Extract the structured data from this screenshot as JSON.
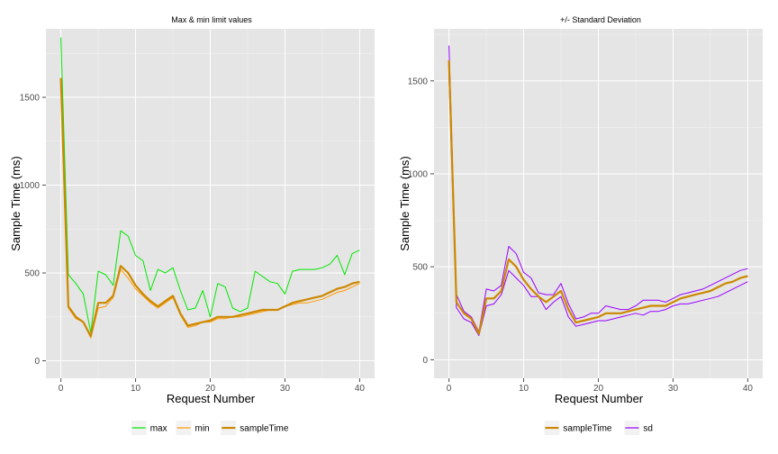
{
  "chart_data": [
    {
      "type": "line",
      "title": "Max & min limit values",
      "xlabel": "Request Number",
      "ylabel": "Sample Time (ms)",
      "xlim": [
        -2,
        42
      ],
      "ylim": [
        -100,
        1890
      ],
      "xticks": [
        0,
        10,
        20,
        30,
        40
      ],
      "yticks": [
        0,
        500,
        1000,
        1500
      ],
      "grid": true,
      "legend_position": "bottom",
      "x": [
        0,
        1,
        2,
        3,
        4,
        5,
        6,
        7,
        8,
        9,
        10,
        11,
        12,
        13,
        14,
        15,
        16,
        17,
        18,
        19,
        20,
        21,
        22,
        23,
        24,
        25,
        26,
        27,
        28,
        29,
        30,
        31,
        32,
        33,
        34,
        35,
        36,
        37,
        38,
        39,
        40
      ],
      "series": [
        {
          "name": "max",
          "color": "#00e600",
          "width": 1,
          "values": [
            1840,
            490,
            440,
            380,
            160,
            510,
            490,
            430,
            740,
            710,
            600,
            570,
            400,
            520,
            500,
            530,
            400,
            290,
            300,
            400,
            250,
            440,
            420,
            300,
            280,
            300,
            510,
            480,
            450,
            440,
            380,
            510,
            520,
            520,
            520,
            530,
            550,
            600,
            490,
            610,
            630
          ]
        },
        {
          "name": "min",
          "color": "#ff9900",
          "width": 1,
          "values": [
            1600,
            300,
            240,
            220,
            130,
            300,
            310,
            360,
            520,
            470,
            410,
            370,
            330,
            300,
            330,
            360,
            260,
            190,
            200,
            220,
            220,
            240,
            240,
            250,
            250,
            260,
            270,
            280,
            290,
            290,
            310,
            320,
            330,
            330,
            340,
            350,
            370,
            390,
            400,
            420,
            440
          ]
        },
        {
          "name": "sampleTime",
          "color": "#cc8800",
          "width": 2.2,
          "values": [
            1610,
            310,
            250,
            220,
            140,
            330,
            330,
            370,
            540,
            500,
            430,
            380,
            340,
            310,
            340,
            370,
            270,
            200,
            210,
            220,
            230,
            250,
            250,
            250,
            260,
            270,
            280,
            290,
            290,
            290,
            310,
            330,
            340,
            350,
            360,
            370,
            390,
            410,
            420,
            440,
            450
          ]
        }
      ]
    },
    {
      "type": "line",
      "title": "+/- Standard Deviation",
      "xlabel": "Request Number",
      "ylabel": "Sample Time (ms)",
      "xlim": [
        -2,
        42
      ],
      "ylim": [
        -100,
        1780
      ],
      "xticks": [
        0,
        10,
        20,
        30,
        40
      ],
      "yticks": [
        0,
        500,
        1000,
        1500
      ],
      "grid": true,
      "legend_position": "bottom",
      "x": [
        0,
        1,
        2,
        3,
        4,
        5,
        6,
        7,
        8,
        9,
        10,
        11,
        12,
        13,
        14,
        15,
        16,
        17,
        18,
        19,
        20,
        21,
        22,
        23,
        24,
        25,
        26,
        27,
        28,
        29,
        30,
        31,
        32,
        33,
        34,
        35,
        36,
        37,
        38,
        39,
        40
      ],
      "series": [
        {
          "name": "sd",
          "color": "#9900ff",
          "width": 1,
          "role": "upper",
          "values": [
            1690,
            350,
            260,
            230,
            150,
            380,
            370,
            400,
            610,
            570,
            470,
            440,
            360,
            350,
            350,
            410,
            300,
            220,
            230,
            250,
            250,
            290,
            280,
            270,
            270,
            290,
            320,
            320,
            320,
            310,
            330,
            350,
            360,
            370,
            380,
            400,
            420,
            440,
            460,
            480,
            490
          ]
        },
        {
          "name": "sd",
          "color": "#9900ff",
          "width": 1,
          "role": "lower",
          "values": [
            1530,
            280,
            220,
            200,
            130,
            290,
            300,
            350,
            480,
            440,
            400,
            340,
            340,
            270,
            310,
            340,
            230,
            180,
            190,
            200,
            210,
            210,
            220,
            230,
            240,
            250,
            240,
            260,
            260,
            270,
            290,
            300,
            300,
            310,
            320,
            330,
            340,
            360,
            380,
            400,
            420
          ]
        },
        {
          "name": "sampleTime",
          "color": "#cc8800",
          "width": 2.2,
          "values": [
            1610,
            310,
            250,
            220,
            140,
            330,
            330,
            370,
            540,
            500,
            430,
            380,
            340,
            310,
            340,
            370,
            270,
            200,
            210,
            220,
            230,
            250,
            250,
            250,
            260,
            270,
            280,
            290,
            290,
            290,
            310,
            330,
            340,
            350,
            360,
            370,
            390,
            410,
            420,
            440,
            450
          ]
        }
      ]
    }
  ],
  "legends": [
    {
      "items": [
        {
          "name": "max",
          "color": "#00e600"
        },
        {
          "name": "min",
          "color": "#ff9900"
        },
        {
          "name": "sampleTime",
          "color": "#cc8800"
        }
      ]
    },
    {
      "items": [
        {
          "name": "sampleTime",
          "color": "#cc8800"
        },
        {
          "name": "sd",
          "color": "#9900ff"
        }
      ]
    }
  ]
}
